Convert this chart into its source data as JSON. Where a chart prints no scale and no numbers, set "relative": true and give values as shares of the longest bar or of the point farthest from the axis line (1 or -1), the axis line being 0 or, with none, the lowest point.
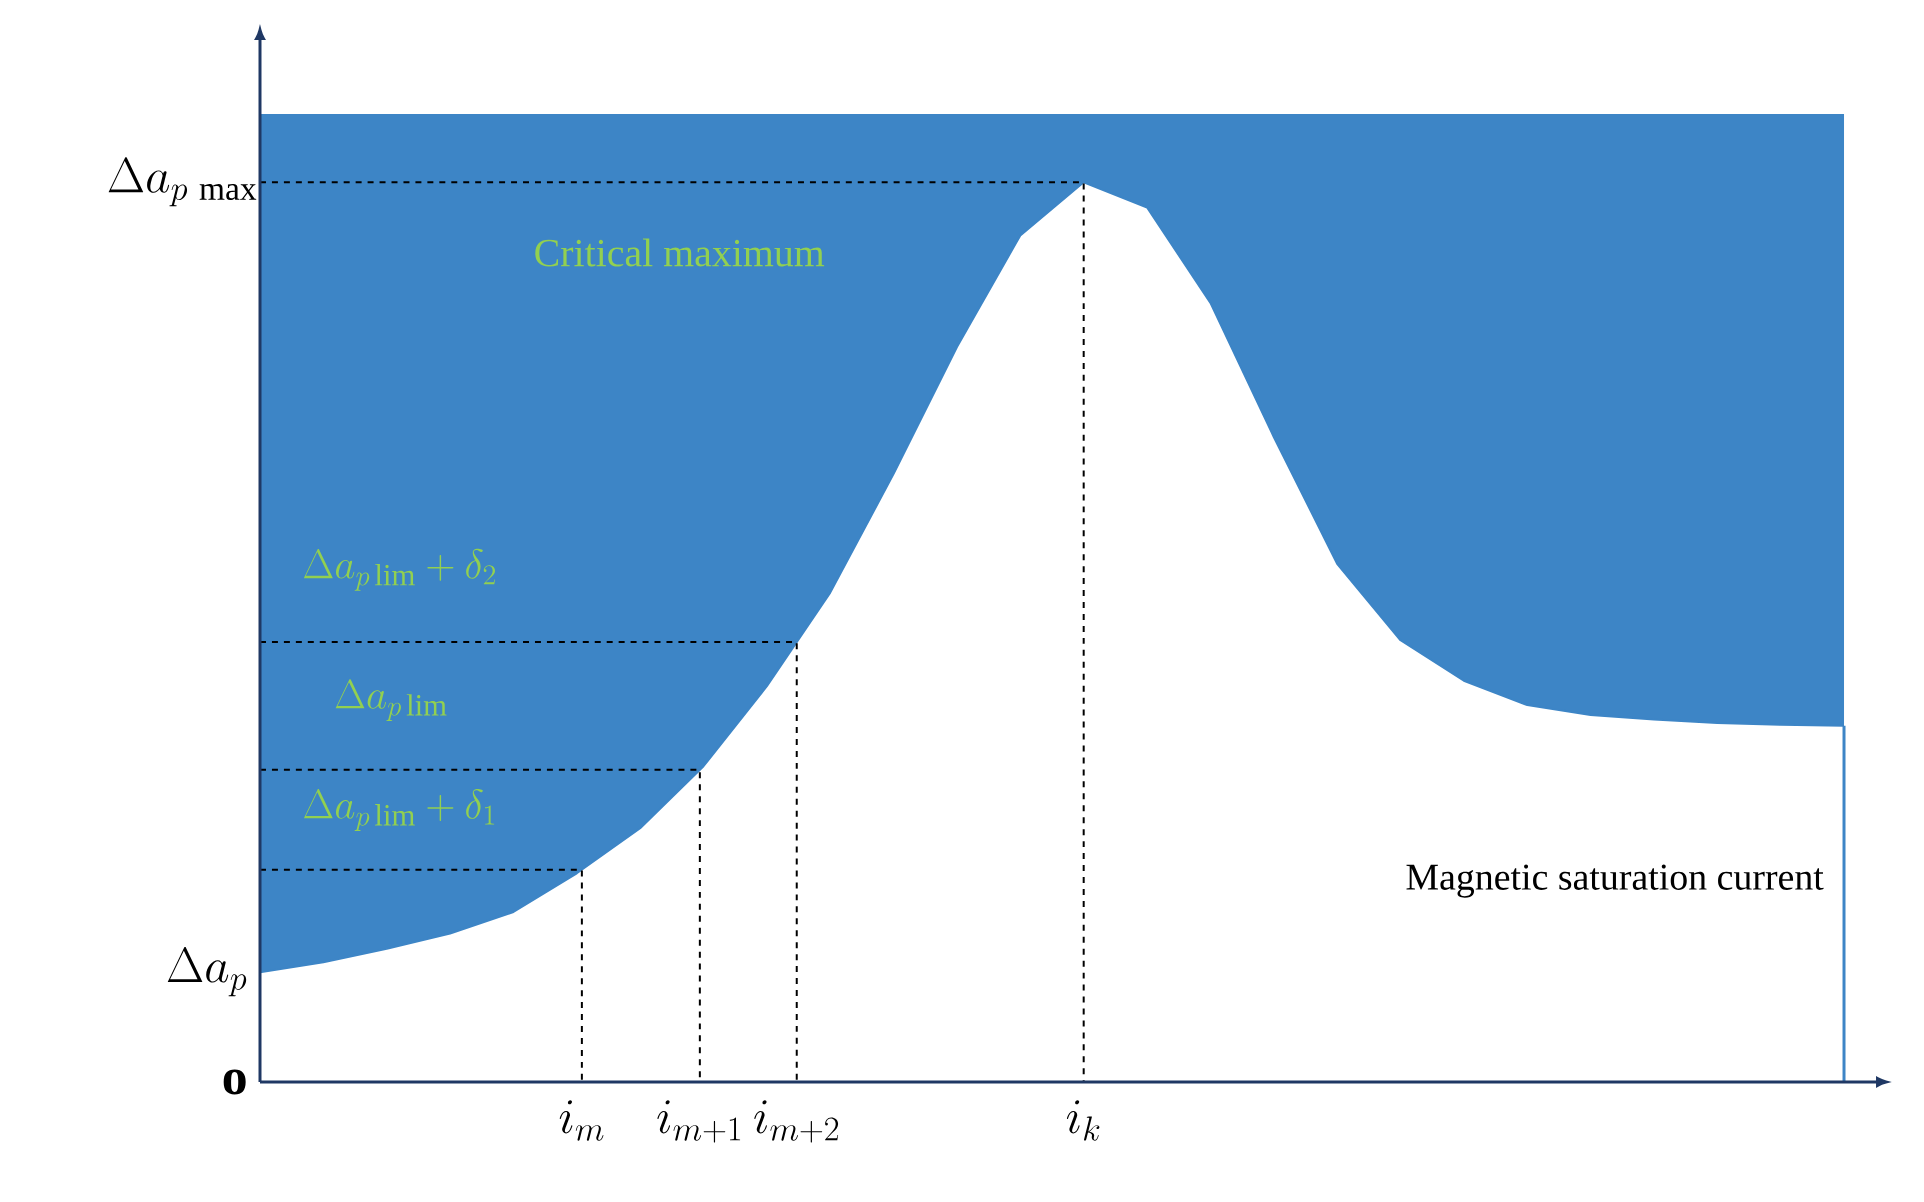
{
  "chart_data": {
    "type": "area",
    "relative": true,
    "categories": [
      null,
      null,
      null,
      null,
      null,
      null,
      null,
      null,
      null,
      null,
      null,
      null,
      null,
      null,
      null,
      null,
      null,
      null,
      null,
      null,
      null,
      null,
      null,
      null,
      null,
      null
    ],
    "series": [
      {
        "color": "#3d85c6",
        "values": [
          0.122,
          0.133,
          0.148,
          0.165,
          0.189,
          0.232,
          0.282,
          0.351,
          0.44,
          0.544,
          0.676,
          0.817,
          0.941,
          1,
          0.972,
          0.866,
          0.717,
          0.576,
          0.491,
          0.446,
          0.419,
          0.408,
          0.403,
          0.399,
          0.397,
          0.396
        ]
      }
    ],
    "ref_lines": [
      {
        "axis": "y",
        "value": 1,
        "label": "\\Delta a_{p\\,\\max}",
        "line_style": "dashed"
      },
      {
        "axis": "y",
        "value": 0.489,
        "line_style": "dashed"
      },
      {
        "axis": "y",
        "value": 0.347,
        "line_style": "dashed"
      },
      {
        "axis": "y",
        "value": 0.236,
        "line_style": "dashed"
      }
    ],
    "annotations": [
      "Critical maximum",
      "\\Delta a_{p\\,\\mathrm{lim}}+\\delta_{2}",
      "\\Delta a_{p\\,\\mathrm{lim}}",
      "\\Delta a_{p\\,\\mathrm{lim}}+\\delta_{1}",
      "\\Delta a_{p}",
      "\\mathbf{o}",
      "Magnetic saturation current",
      "i_{k}",
      "i_{m+2}",
      "i_{m+1}",
      "i_{m}"
    ]
  }
}
